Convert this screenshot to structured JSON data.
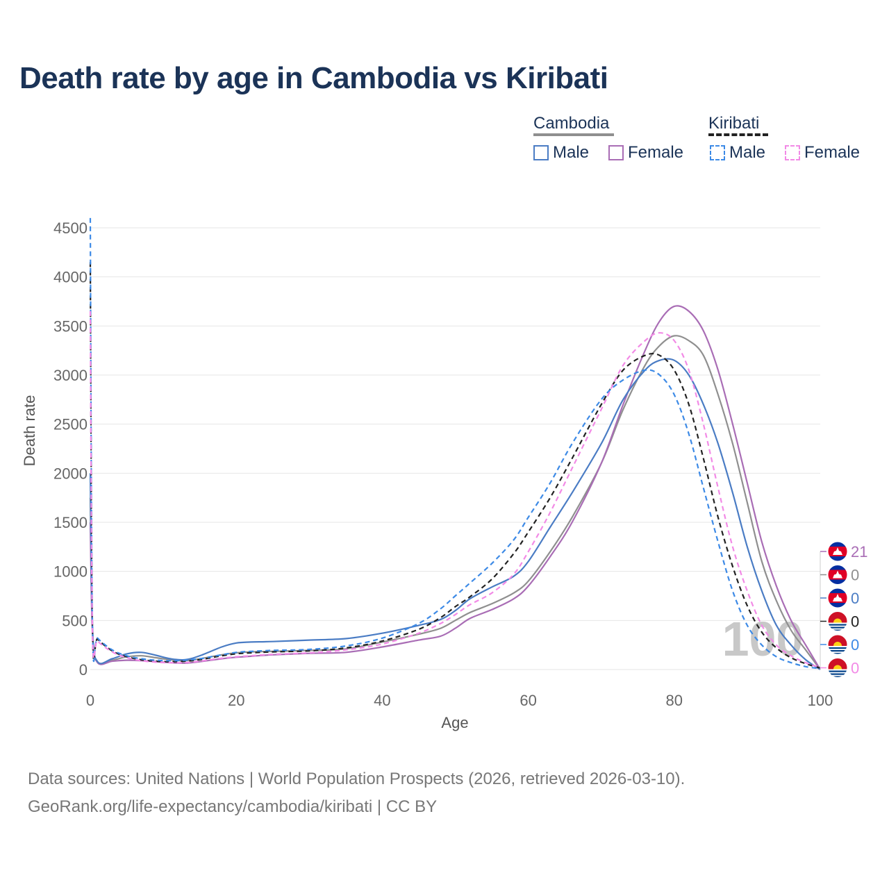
{
  "title": "Death rate by age in Cambodia vs Kiribati",
  "legend": {
    "groups": [
      {
        "name": "Cambodia",
        "items": [
          {
            "label": "Male",
            "color": "#4a7cc4",
            "dashed": false
          },
          {
            "label": "Female",
            "color": "#a96db5",
            "dashed": false
          }
        ]
      },
      {
        "name": "Kiribati",
        "items": [
          {
            "label": "Male",
            "color": "#3d8ae6",
            "dashed": true
          },
          {
            "label": "Female",
            "color": "#f28ae6",
            "dashed": true
          }
        ]
      }
    ]
  },
  "watermark": "100",
  "end_labels": [
    {
      "value": "21",
      "country": "Cambodia",
      "color": "#a96db5"
    },
    {
      "value": "0",
      "country": "Cambodia",
      "color": "#8f8f8f"
    },
    {
      "value": "0",
      "country": "Cambodia",
      "color": "#4a7cc4"
    },
    {
      "value": "0",
      "country": "Kiribati",
      "color": "#222222"
    },
    {
      "value": "0",
      "country": "Kiribati",
      "color": "#3d8ae6"
    },
    {
      "value": "0",
      "country": "Kiribati",
      "color": "#f28ae6"
    }
  ],
  "footer": {
    "line1": "Data sources: United Nations | World Population Prospects (2026, retrieved 2026-03-10).",
    "line2": "GeoRank.org/life-expectancy/cambodia/kiribati | CC BY"
  },
  "chart_data": {
    "type": "line",
    "xlabel": "Age",
    "ylabel": "Death rate",
    "xlim": [
      0,
      100
    ],
    "ylim": [
      0,
      4500
    ],
    "xticks": [
      0,
      20,
      40,
      60,
      80,
      100
    ],
    "yticks": [
      0,
      500,
      1000,
      1500,
      2000,
      2500,
      3000,
      3500,
      4000,
      4500
    ],
    "grid": true,
    "series": [
      {
        "name": "Cambodia Total",
        "color": "#8f8f8f",
        "dash": false,
        "x": [
          0,
          0.3,
          1,
          3,
          5,
          7,
          9,
          11,
          13,
          15,
          18,
          20,
          22,
          25,
          30,
          35,
          40,
          45,
          48,
          50,
          52,
          55,
          58,
          60,
          63,
          66,
          70,
          73,
          76,
          78,
          80,
          82,
          84,
          86,
          88,
          90,
          92,
          94,
          96,
          98,
          100
        ],
        "y": [
          1750,
          400,
          75,
          95,
          130,
          140,
          120,
          100,
          90,
          110,
          150,
          170,
          180,
          185,
          195,
          210,
          280,
          360,
          420,
          500,
          580,
          670,
          780,
          900,
          1200,
          1550,
          2100,
          2650,
          3100,
          3300,
          3400,
          3350,
          3200,
          2800,
          2300,
          1700,
          1100,
          700,
          400,
          200,
          0
        ]
      },
      {
        "name": "Cambodia Female",
        "color": "#a96db5",
        "dash": false,
        "x": [
          0,
          0.3,
          1,
          3,
          5,
          7,
          9,
          11,
          13,
          15,
          18,
          20,
          22,
          25,
          30,
          35,
          40,
          45,
          48,
          50,
          52,
          55,
          58,
          60,
          63,
          66,
          70,
          73,
          76,
          78,
          80,
          82,
          84,
          86,
          88,
          90,
          92,
          94,
          96,
          98,
          100
        ],
        "y": [
          1500,
          360,
          70,
          85,
          95,
          90,
          80,
          70,
          65,
          80,
          110,
          125,
          135,
          150,
          165,
          175,
          230,
          300,
          340,
          420,
          520,
          610,
          720,
          850,
          1150,
          1500,
          2100,
          2700,
          3250,
          3550,
          3700,
          3650,
          3450,
          3050,
          2500,
          1900,
          1300,
          850,
          500,
          250,
          0
        ]
      },
      {
        "name": "Cambodia Male",
        "color": "#4a7cc4",
        "dash": false,
        "x": [
          0,
          0.3,
          1,
          3,
          5,
          7,
          9,
          11,
          13,
          15,
          18,
          20,
          22,
          25,
          30,
          35,
          40,
          45,
          48,
          50,
          52,
          55,
          58,
          60,
          63,
          66,
          70,
          73,
          76,
          78,
          80,
          82,
          84,
          86,
          88,
          90,
          92,
          94,
          96,
          98,
          100
        ],
        "y": [
          2000,
          420,
          80,
          110,
          160,
          175,
          145,
          110,
          100,
          140,
          230,
          270,
          280,
          285,
          300,
          315,
          370,
          450,
          510,
          600,
          720,
          840,
          950,
          1100,
          1450,
          1800,
          2300,
          2750,
          3050,
          3150,
          3150,
          3000,
          2700,
          2300,
          1800,
          1250,
          800,
          450,
          250,
          100,
          0
        ]
      },
      {
        "name": "Kiribati Total",
        "color": "#222222",
        "dash": true,
        "x": [
          0,
          0.3,
          1,
          3,
          5,
          7,
          9,
          11,
          13,
          15,
          18,
          20,
          22,
          25,
          30,
          35,
          40,
          45,
          48,
          50,
          52,
          55,
          58,
          60,
          63,
          66,
          70,
          73,
          76,
          78,
          80,
          82,
          84,
          86,
          88,
          90,
          92,
          94,
          96,
          98,
          100
        ],
        "y": [
          4150,
          400,
          310,
          190,
          130,
          100,
          85,
          80,
          85,
          100,
          140,
          160,
          170,
          180,
          190,
          220,
          290,
          410,
          530,
          640,
          740,
          920,
          1180,
          1400,
          1750,
          2150,
          2700,
          3050,
          3200,
          3200,
          3050,
          2700,
          2150,
          1550,
          1050,
          650,
          380,
          220,
          120,
          60,
          15
        ]
      },
      {
        "name": "Kiribati Male",
        "color": "#3d8ae6",
        "dash": true,
        "x": [
          0,
          0.3,
          1,
          3,
          5,
          7,
          9,
          11,
          13,
          15,
          18,
          20,
          22,
          25,
          30,
          35,
          40,
          45,
          48,
          50,
          52,
          55,
          58,
          60,
          63,
          66,
          70,
          73,
          76,
          78,
          80,
          82,
          84,
          86,
          88,
          90,
          92,
          94,
          96,
          98,
          100
        ],
        "y": [
          4600,
          420,
          320,
          200,
          140,
          110,
          95,
          90,
          95,
          110,
          150,
          175,
          185,
          195,
          205,
          240,
          320,
          470,
          620,
          750,
          880,
          1080,
          1320,
          1550,
          1900,
          2300,
          2750,
          2950,
          3050,
          3000,
          2800,
          2400,
          1850,
          1300,
          800,
          450,
          250,
          130,
          70,
          30,
          10
        ]
      },
      {
        "name": "Kiribati Female",
        "color": "#f28ae6",
        "dash": true,
        "x": [
          0,
          0.3,
          1,
          3,
          5,
          7,
          9,
          11,
          13,
          15,
          18,
          20,
          22,
          25,
          30,
          35,
          40,
          45,
          48,
          50,
          52,
          55,
          58,
          60,
          63,
          66,
          70,
          73,
          76,
          78,
          80,
          82,
          84,
          86,
          88,
          90,
          92,
          94,
          96,
          98,
          100
        ],
        "y": [
          3650,
          380,
          290,
          180,
          120,
          90,
          75,
          70,
          70,
          85,
          115,
          130,
          140,
          155,
          170,
          200,
          260,
          370,
          470,
          560,
          660,
          780,
          970,
          1200,
          1600,
          2050,
          2650,
          3100,
          3350,
          3430,
          3350,
          3050,
          2500,
          1850,
          1250,
          800,
          450,
          250,
          140,
          70,
          20
        ]
      }
    ]
  }
}
